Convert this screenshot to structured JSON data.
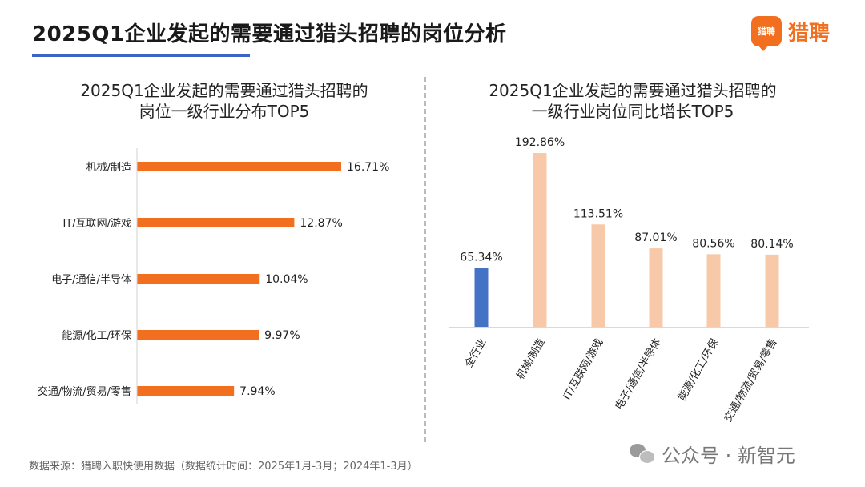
{
  "header": {
    "title": "2025Q1企业发起的需要通过猎头招聘的岗位分析",
    "logo_mark": "猎聘",
    "logo_text": "猎聘"
  },
  "colors": {
    "bar_left": "#f26f1f",
    "bar_right_highlight": "#4472c4",
    "bar_right": "#f8c9a8",
    "accent_rule": "#3d63c9"
  },
  "chart_data": [
    {
      "type": "bar",
      "orientation": "horizontal",
      "title_lines": [
        "2025Q1企业发起的需要通过猎头招聘的",
        "岗位一级行业分布TOP5"
      ],
      "categories": [
        "机械/制造",
        "IT/互联网/游戏",
        "电子/通信/半导体",
        "能源/化工/环保",
        "交通/物流/贸易/零售"
      ],
      "values": [
        16.71,
        12.87,
        10.04,
        9.97,
        7.94
      ],
      "value_labels": [
        "16.71%",
        "12.87%",
        "10.04%",
        "9.97%",
        "7.94%"
      ],
      "xlim": [
        0,
        16.71
      ],
      "grid": false
    },
    {
      "type": "bar",
      "orientation": "vertical",
      "title_lines": [
        "2025Q1企业发起的需要通过猎头招聘的",
        "一级行业岗位同比增长TOP5"
      ],
      "categories": [
        "全行业",
        "机械/制造",
        "IT/互联网/游戏",
        "电子/通信/半导体",
        "能源/化工/环保",
        "交通/物流/贸易/零售"
      ],
      "values": [
        65.34,
        192.86,
        113.51,
        87.01,
        80.56,
        80.14
      ],
      "value_labels": [
        "65.34%",
        "192.86%",
        "113.51%",
        "87.01%",
        "80.56%",
        "80.14%"
      ],
      "highlight_index": 0,
      "ylim": [
        0,
        192.86
      ],
      "grid": false
    }
  ],
  "footer": {
    "source": "数据来源：猎聘入职快使用数据（数据统计时间：2025年1月-3月；2024年1-3月）",
    "watermark": "公众号 · 新智元"
  }
}
